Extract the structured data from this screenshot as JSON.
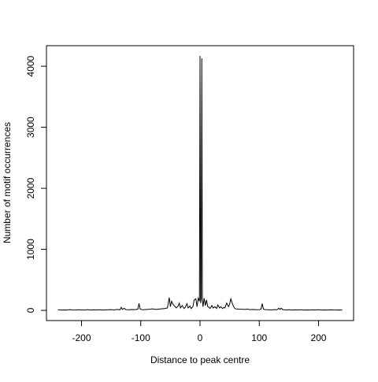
{
  "chart_data": {
    "type": "line",
    "xlabel": "Distance to peak centre",
    "ylabel": "Number of motif occurrences",
    "x": [
      -240,
      -235,
      -230,
      -225,
      -220,
      -215,
      -210,
      -205,
      -200,
      -195,
      -190,
      -185,
      -180,
      -175,
      -170,
      -165,
      -160,
      -155,
      -150,
      -145,
      -140,
      -135,
      -133,
      -131,
      -128,
      -125,
      -120,
      -115,
      -110,
      -105,
      -103,
      -101,
      -98,
      -95,
      -90,
      -85,
      -80,
      -75,
      -70,
      -65,
      -60,
      -55,
      -52,
      -50,
      -48,
      -45,
      -42,
      -40,
      -37,
      -35,
      -33,
      -30,
      -27,
      -25,
      -22,
      -20,
      -17,
      -15,
      -12,
      -10,
      -7,
      -5,
      -3,
      -1,
      0,
      1,
      2,
      3,
      4,
      5,
      7,
      9,
      11,
      13,
      15,
      17,
      20,
      22,
      25,
      28,
      30,
      33,
      35,
      38,
      40,
      42,
      45,
      48,
      50,
      52,
      55,
      58,
      60,
      65,
      70,
      75,
      80,
      85,
      90,
      95,
      100,
      103,
      105,
      107,
      110,
      115,
      120,
      125,
      130,
      133,
      135,
      137,
      140,
      145,
      150,
      155,
      160,
      165,
      170,
      175,
      180,
      185,
      190,
      195,
      200,
      205,
      210,
      215,
      220,
      225,
      230,
      235,
      240
    ],
    "series": [
      {
        "name": "occurrences",
        "color": "#000000",
        "values": [
          10,
          5,
          8,
          6,
          12,
          7,
          5,
          10,
          8,
          6,
          12,
          5,
          9,
          7,
          11,
          6,
          8,
          10,
          12,
          8,
          15,
          10,
          50,
          15,
          35,
          12,
          10,
          14,
          12,
          20,
          115,
          20,
          12,
          10,
          15,
          18,
          25,
          15,
          20,
          25,
          30,
          40,
          210,
          60,
          150,
          90,
          60,
          40,
          70,
          120,
          40,
          80,
          30,
          50,
          110,
          40,
          70,
          30,
          60,
          170,
          190,
          60,
          200,
          150,
          4170,
          120,
          200,
          4130,
          180,
          60,
          200,
          80,
          170,
          60,
          50,
          30,
          80,
          40,
          60,
          30,
          90,
          40,
          60,
          30,
          50,
          40,
          120,
          60,
          100,
          190,
          100,
          40,
          25,
          20,
          18,
          15,
          20,
          12,
          15,
          10,
          12,
          20,
          110,
          20,
          12,
          10,
          8,
          12,
          10,
          35,
          15,
          35,
          12,
          8,
          10,
          6,
          9,
          7,
          10,
          6,
          8,
          5,
          9,
          7,
          10,
          6,
          8,
          5,
          9,
          7,
          6,
          8,
          5
        ]
      }
    ],
    "xlim": [
      -259.2,
      259.2
    ],
    "ylim": [
      -167,
      4337
    ],
    "xticks": [
      -200,
      -100,
      0,
      100,
      200
    ],
    "yticks": [
      0,
      1000,
      2000,
      3000,
      4000
    ]
  }
}
